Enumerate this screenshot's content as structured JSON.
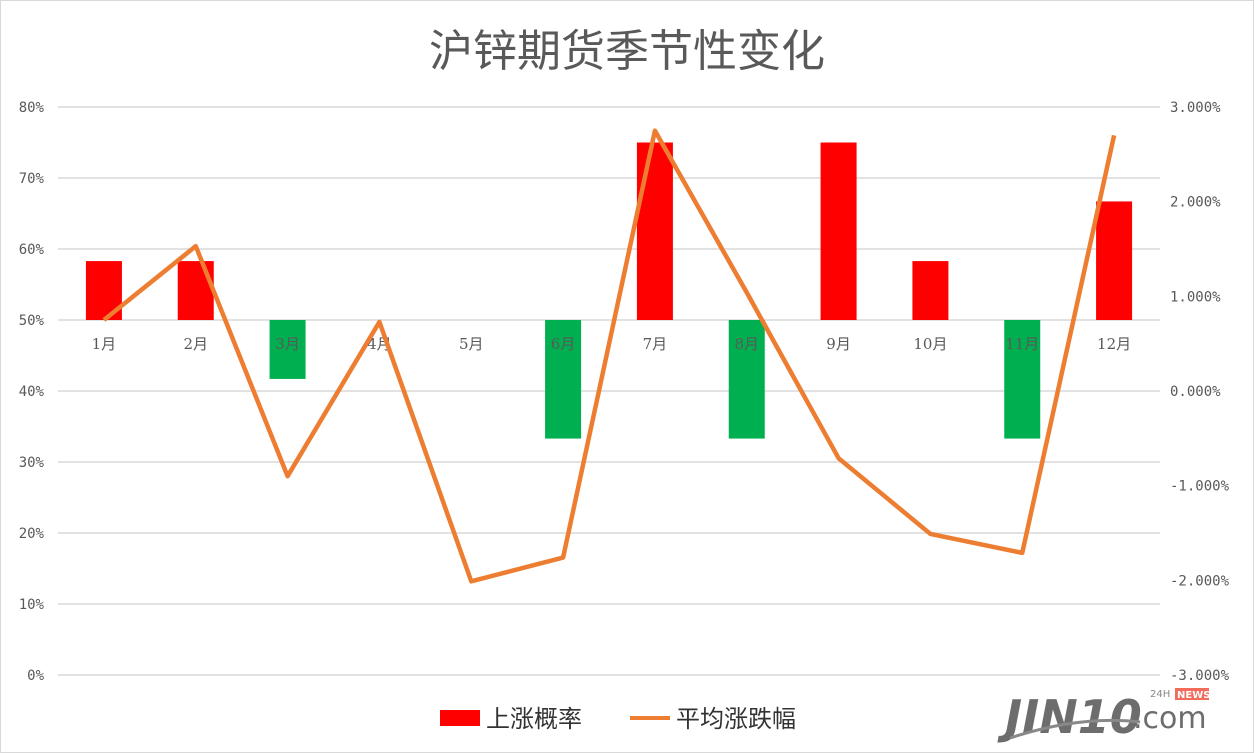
{
  "chart_data": {
    "type": "bar+line",
    "title": "沪锌期货季节性变化",
    "categories": [
      "1月",
      "2月",
      "3月",
      "4月",
      "5月",
      "6月",
      "7月",
      "8月",
      "9月",
      "10月",
      "11月",
      "12月"
    ],
    "series": [
      {
        "name": "上涨概率",
        "type": "bar",
        "axis": "left",
        "baseline": 50,
        "values": [
          58.3,
          58.3,
          41.7,
          50,
          50,
          33.3,
          75,
          33.3,
          75,
          58.3,
          33.3,
          66.7
        ]
      },
      {
        "name": "平均涨跌幅",
        "type": "line",
        "axis": "right",
        "values": [
          0.75,
          1.53,
          -0.9,
          0.73,
          -2.01,
          -1.76,
          2.75,
          1.04,
          -0.71,
          -1.51,
          -1.71,
          2.7
        ]
      }
    ],
    "left_axis": {
      "ylim": [
        0,
        80
      ],
      "ticks": [
        "0%",
        "10%",
        "20%",
        "30%",
        "40%",
        "50%",
        "60%",
        "70%",
        "80%"
      ]
    },
    "right_axis": {
      "ylim": [
        -3,
        3
      ],
      "ticks": [
        "-3.000%",
        "-2.000%",
        "-1.000%",
        "0.000%",
        "1.000%",
        "2.000%",
        "3.000%"
      ]
    },
    "grid": true,
    "legend_placement": "bottom",
    "colors": {
      "up": "#FF0000",
      "down": "#00B050",
      "line": "#ED7D31",
      "grid": "#D9D9D9"
    }
  },
  "watermark": {
    "text": "JIN10.com",
    "badge": "24H NEWS"
  }
}
